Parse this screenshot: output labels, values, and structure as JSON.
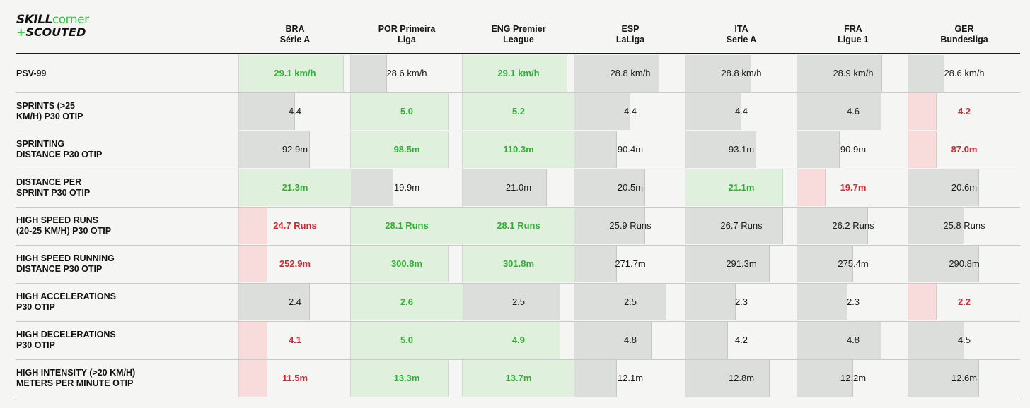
{
  "logo": {
    "word1": "SKILL",
    "word2": "corner",
    "plus": "+",
    "word3": "SCOUTED"
  },
  "colors": {
    "green": "#2db331",
    "red": "#e4202a",
    "grey_bar": "#dcdedb",
    "green_bar": "#dff1dc",
    "red_bar": "#f8dcdc"
  },
  "chart_data": {
    "type": "table",
    "columns": [
      {
        "line1": "BRA",
        "line2": "Série A"
      },
      {
        "line1": "POR Primeira",
        "line2": "Liga"
      },
      {
        "line1": "ENG Premier",
        "line2": "League"
      },
      {
        "line1": "ESP",
        "line2": "LaLiga"
      },
      {
        "line1": "ITA",
        "line2": "Serie A"
      },
      {
        "line1": "FRA",
        "line2": "Ligue 1"
      },
      {
        "line1": "GER",
        "line2": "Bundesliga"
      }
    ],
    "rows": [
      {
        "metric": [
          "PSV-99"
        ],
        "display": [
          "29.1 km/h",
          "28.6 km/h",
          "29.1 km/h",
          "28.8 km/h",
          "28.8 km/h",
          "28.9 km/h",
          "28.6 km/h"
        ],
        "fill": [
          0.92,
          0.22,
          0.92,
          0.72,
          0.52,
          0.72,
          0.22
        ],
        "status": [
          "green",
          "grey",
          "green",
          "grey",
          "grey",
          "grey",
          "grey"
        ]
      },
      {
        "metric": [
          "SPRINTS (>25",
          "KM/H) P30 OTIP"
        ],
        "display": [
          "4.4",
          "5.0",
          "5.2",
          "4.4",
          "4.4",
          "4.6",
          "4.2"
        ],
        "fill": [
          0.42,
          0.85,
          1.0,
          0.42,
          0.42,
          0.71,
          0.14
        ],
        "status": [
          "grey",
          "green",
          "green",
          "grey",
          "grey",
          "grey",
          "red"
        ]
      },
      {
        "metric": [
          "SPRINTING",
          "DISTANCE P30 OTIP"
        ],
        "display": [
          "92.9m",
          "98.5m",
          "110.3m",
          "90.4m",
          "93.1m",
          "90.9m",
          "87.0m"
        ],
        "fill": [
          0.57,
          0.85,
          1.0,
          0.28,
          0.57,
          0.28,
          0.14
        ],
        "status": [
          "grey",
          "green",
          "green",
          "grey",
          "grey",
          "grey",
          "red"
        ]
      },
      {
        "metric": [
          "DISTANCE PER",
          "SPRINT P30 OTIP"
        ],
        "display": [
          "21.3m",
          "19.9m",
          "21.0m",
          "20.5m",
          "21.1m",
          "19.7m",
          "20.6m"
        ],
        "fill": [
          1.0,
          0.28,
          0.71,
          0.57,
          0.85,
          0.14,
          0.57
        ],
        "status": [
          "green",
          "grey",
          "grey",
          "grey",
          "green",
          "red",
          "grey"
        ]
      },
      {
        "metric": [
          "HIGH SPEED RUNS",
          "(20-25 KM/H) P30 OTIP"
        ],
        "display": [
          "24.7 Runs",
          "28.1 Runs",
          "28.1 Runs",
          "25.9 Runs",
          "26.7 Runs",
          "26.2 Runs",
          "25.8 Runs"
        ],
        "fill": [
          0.14,
          1.0,
          1.0,
          0.57,
          0.85,
          0.57,
          0.42
        ],
        "status": [
          "red",
          "green",
          "green",
          "grey",
          "grey",
          "grey",
          "grey"
        ]
      },
      {
        "metric": [
          "HIGH SPEED RUNNING",
          "DISTANCE P30 OTIP"
        ],
        "display": [
          "252.9m",
          "300.8m",
          "301.8m",
          "271.7m",
          "291.3m",
          "275.4m",
          "290.8m"
        ],
        "fill": [
          0.14,
          0.85,
          1.0,
          0.28,
          0.71,
          0.42,
          0.57
        ],
        "status": [
          "red",
          "green",
          "green",
          "grey",
          "grey",
          "grey",
          "grey"
        ]
      },
      {
        "metric": [
          "HIGH ACCELERATIONS",
          "P30 OTIP"
        ],
        "display": [
          "2.4",
          "2.6",
          "2.5",
          "2.5",
          "2.3",
          "2.3",
          "2.2"
        ],
        "fill": [
          0.57,
          1.0,
          0.85,
          0.79,
          0.36,
          0.36,
          0.14
        ],
        "status": [
          "grey",
          "green",
          "grey",
          "grey",
          "grey",
          "grey",
          "red"
        ]
      },
      {
        "metric": [
          "HIGH DECELERATIONS",
          "P30 OTIP"
        ],
        "display": [
          "4.1",
          "5.0",
          "4.9",
          "4.8",
          "4.2",
          "4.8",
          "4.5"
        ],
        "fill": [
          0.14,
          1.0,
          0.85,
          0.64,
          0.28,
          0.71,
          0.42
        ],
        "status": [
          "red",
          "green",
          "green",
          "grey",
          "grey",
          "grey",
          "grey"
        ]
      },
      {
        "metric": [
          "HIGH INTENSITY (>20 KM/H)",
          "METERS PER MINUTE OTIP"
        ],
        "display": [
          "11.5m",
          "13.3m",
          "13.7m",
          "12.1m",
          "12.8m",
          "12.2m",
          "12.6m"
        ],
        "fill": [
          0.14,
          0.85,
          1.0,
          0.28,
          0.71,
          0.42,
          0.57
        ],
        "status": [
          "red",
          "green",
          "green",
          "grey",
          "grey",
          "grey",
          "grey"
        ]
      }
    ]
  }
}
